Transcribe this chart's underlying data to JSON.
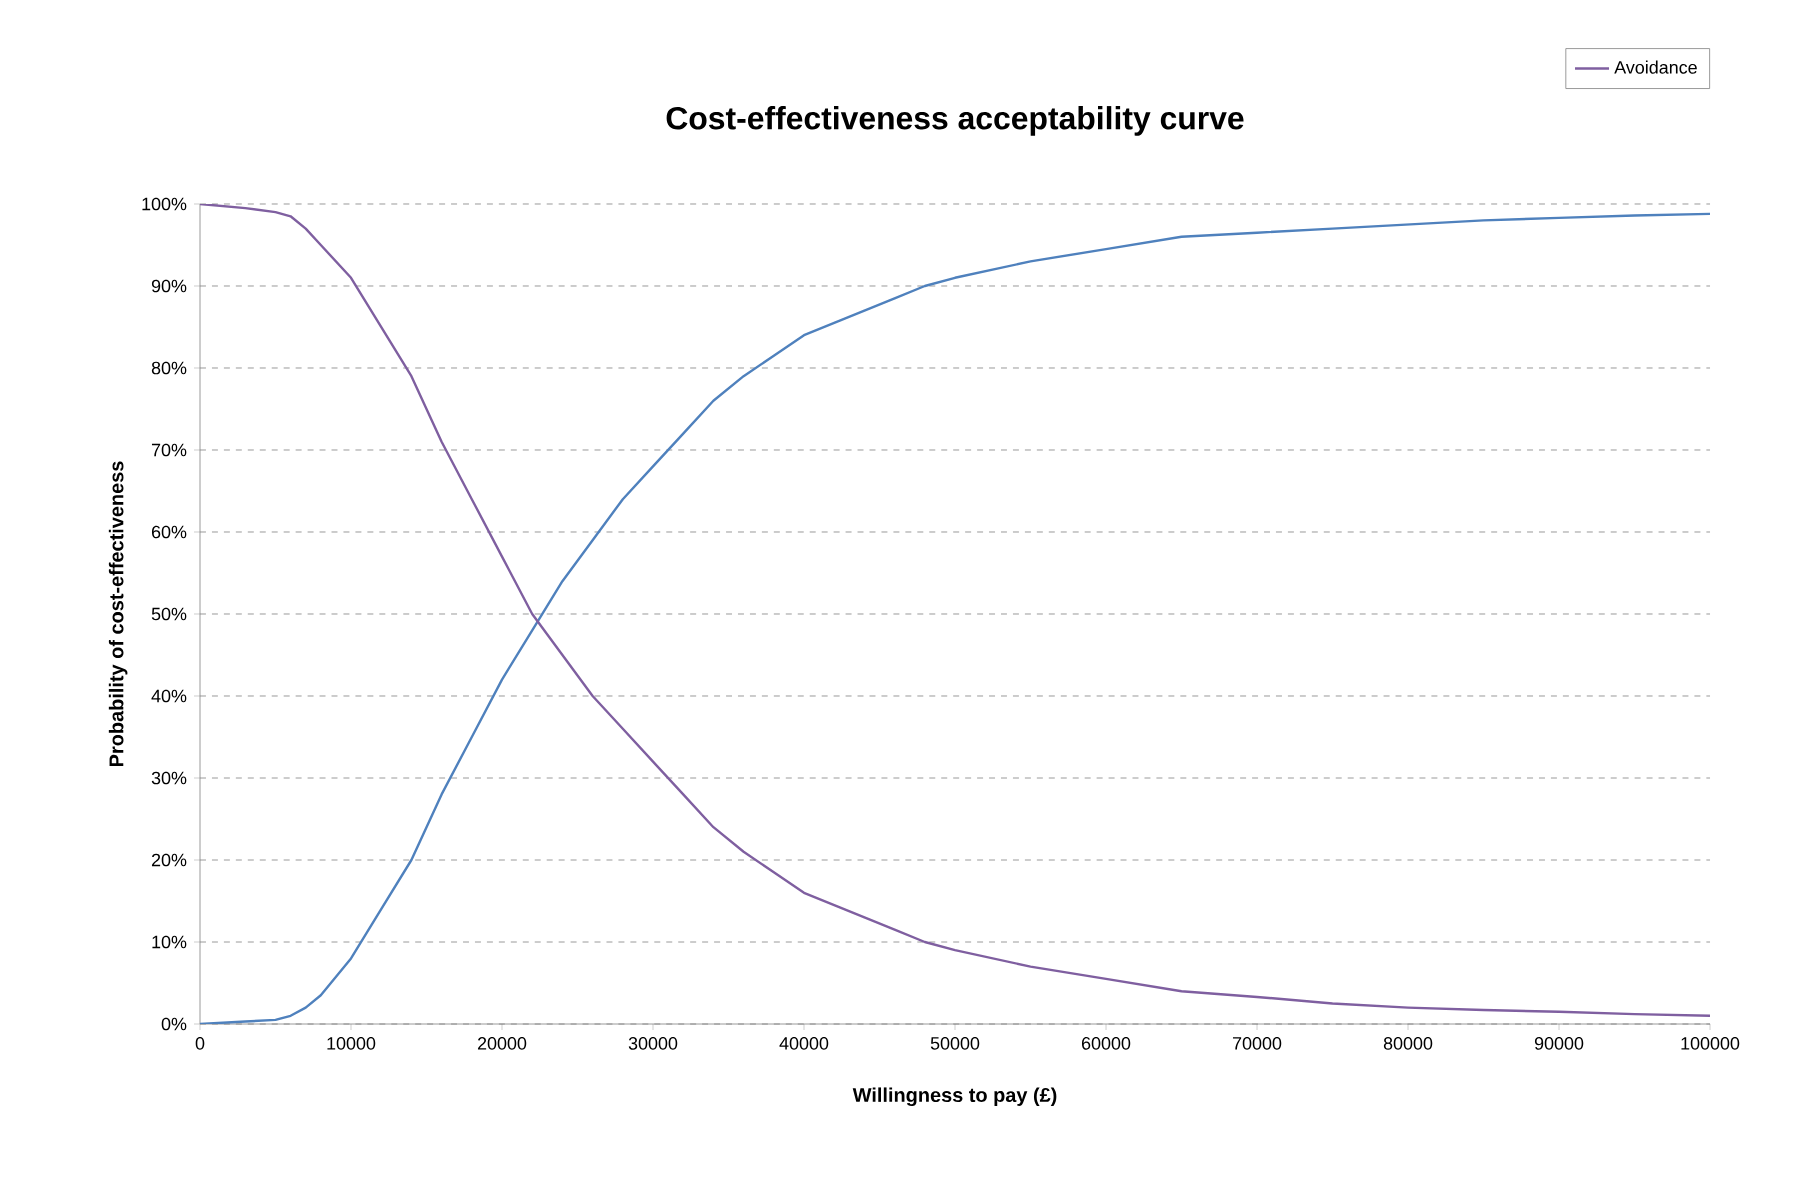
{
  "chart_data": {
    "type": "line",
    "title": "Cost-effectiveness acceptability curve",
    "xlabel": "Willingness to pay (£)",
    "ylabel": "Probability of cost-effectiveness",
    "x": [
      0,
      3000,
      5000,
      6000,
      7000,
      8000,
      10000,
      12000,
      14000,
      16000,
      18000,
      20000,
      22000,
      24000,
      26000,
      28000,
      30000,
      32000,
      34000,
      36000,
      38000,
      40000,
      42000,
      44000,
      46000,
      48000,
      50000,
      55000,
      60000,
      65000,
      70000,
      75000,
      80000,
      85000,
      90000,
      95000,
      100000
    ],
    "series": [
      {
        "color": "#4f81bd",
        "values": [
          0,
          0.3,
          0.5,
          1,
          2,
          3.5,
          8,
          14,
          20,
          28,
          35,
          42,
          48,
          54,
          59,
          64,
          68,
          72,
          76,
          79,
          81.5,
          84,
          85.5,
          87,
          88.5,
          90,
          91,
          93,
          94.5,
          96,
          96.5,
          97,
          97.5,
          98,
          98.3,
          98.6,
          98.8
        ]
      },
      {
        "name": "Avoidance",
        "color": "#7f5fa0",
        "values": [
          100,
          99.5,
          99,
          98.5,
          97,
          95,
          91,
          85,
          79,
          71,
          64,
          57,
          50,
          45,
          40,
          36,
          32,
          28,
          24,
          21,
          18.5,
          16,
          14.5,
          13,
          11.5,
          10,
          9,
          7,
          5.5,
          4,
          3.3,
          2.5,
          2,
          1.7,
          1.5,
          1.2,
          1
        ]
      }
    ],
    "xlim": [
      0,
      100000
    ],
    "xticks": [
      0,
      10000,
      20000,
      30000,
      40000,
      50000,
      60000,
      70000,
      80000,
      90000,
      100000
    ],
    "ylim": [
      0,
      100
    ],
    "yticks": [
      {
        "value": 0,
        "label": "0%"
      },
      {
        "value": 10,
        "label": "10%"
      },
      {
        "value": 20,
        "label": "20%"
      },
      {
        "value": 30,
        "label": "30%"
      },
      {
        "value": 40,
        "label": "40%"
      },
      {
        "value": 50,
        "label": "50%"
      },
      {
        "value": 60,
        "label": "60%"
      },
      {
        "value": 70,
        "label": "70%"
      },
      {
        "value": 80,
        "label": "80%"
      },
      {
        "value": 90,
        "label": "90%"
      },
      {
        "value": 100,
        "label": "100%"
      }
    ],
    "grid": "y",
    "legend": "top right",
    "marker": "none",
    "line_style": "solid"
  }
}
